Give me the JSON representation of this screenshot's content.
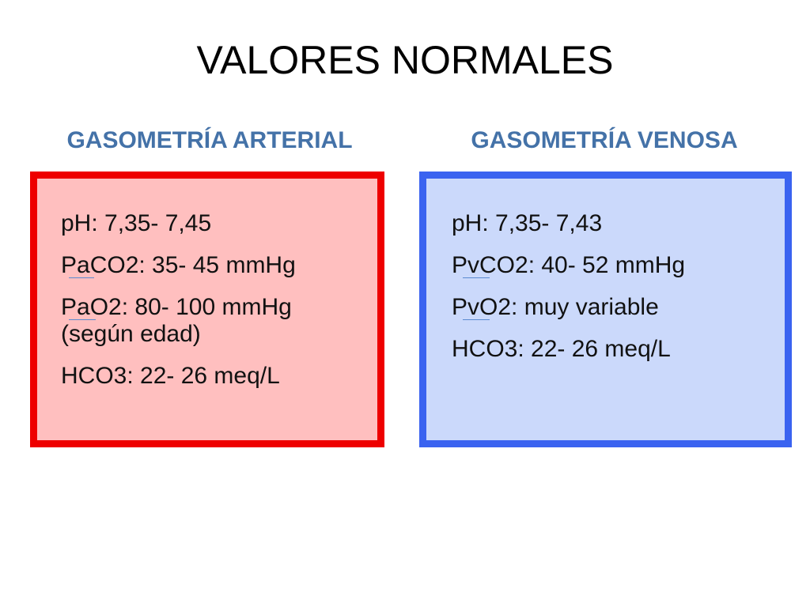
{
  "slide": {
    "title": "VALORES NORMALES",
    "arterial": {
      "heading": "GASOMETRÍA ARTERIAL",
      "lines": [
        "pH: 7,35- 7,45",
        "PaCO2: 35- 45 mmHg",
        "PaO2: 80- 100 mmHg",
        "(según edad)",
        "HCO3: 22- 26 meq/L"
      ]
    },
    "venosa": {
      "heading": "GASOMETRÍA VENOSA",
      "lines": [
        "pH: 7,35- 7,43",
        "PvCO2: 40- 52 mmHg",
        "PvO2: muy variable",
        "HCO3: 22- 26 meq/L"
      ]
    }
  },
  "colors": {
    "title_text": "#000000",
    "heading_text": "#4472a8",
    "arterial_border": "#ee0000",
    "arterial_fill": "#ffbfbf",
    "venosa_border": "#3a63f0",
    "venosa_fill": "#cbd9fb"
  }
}
